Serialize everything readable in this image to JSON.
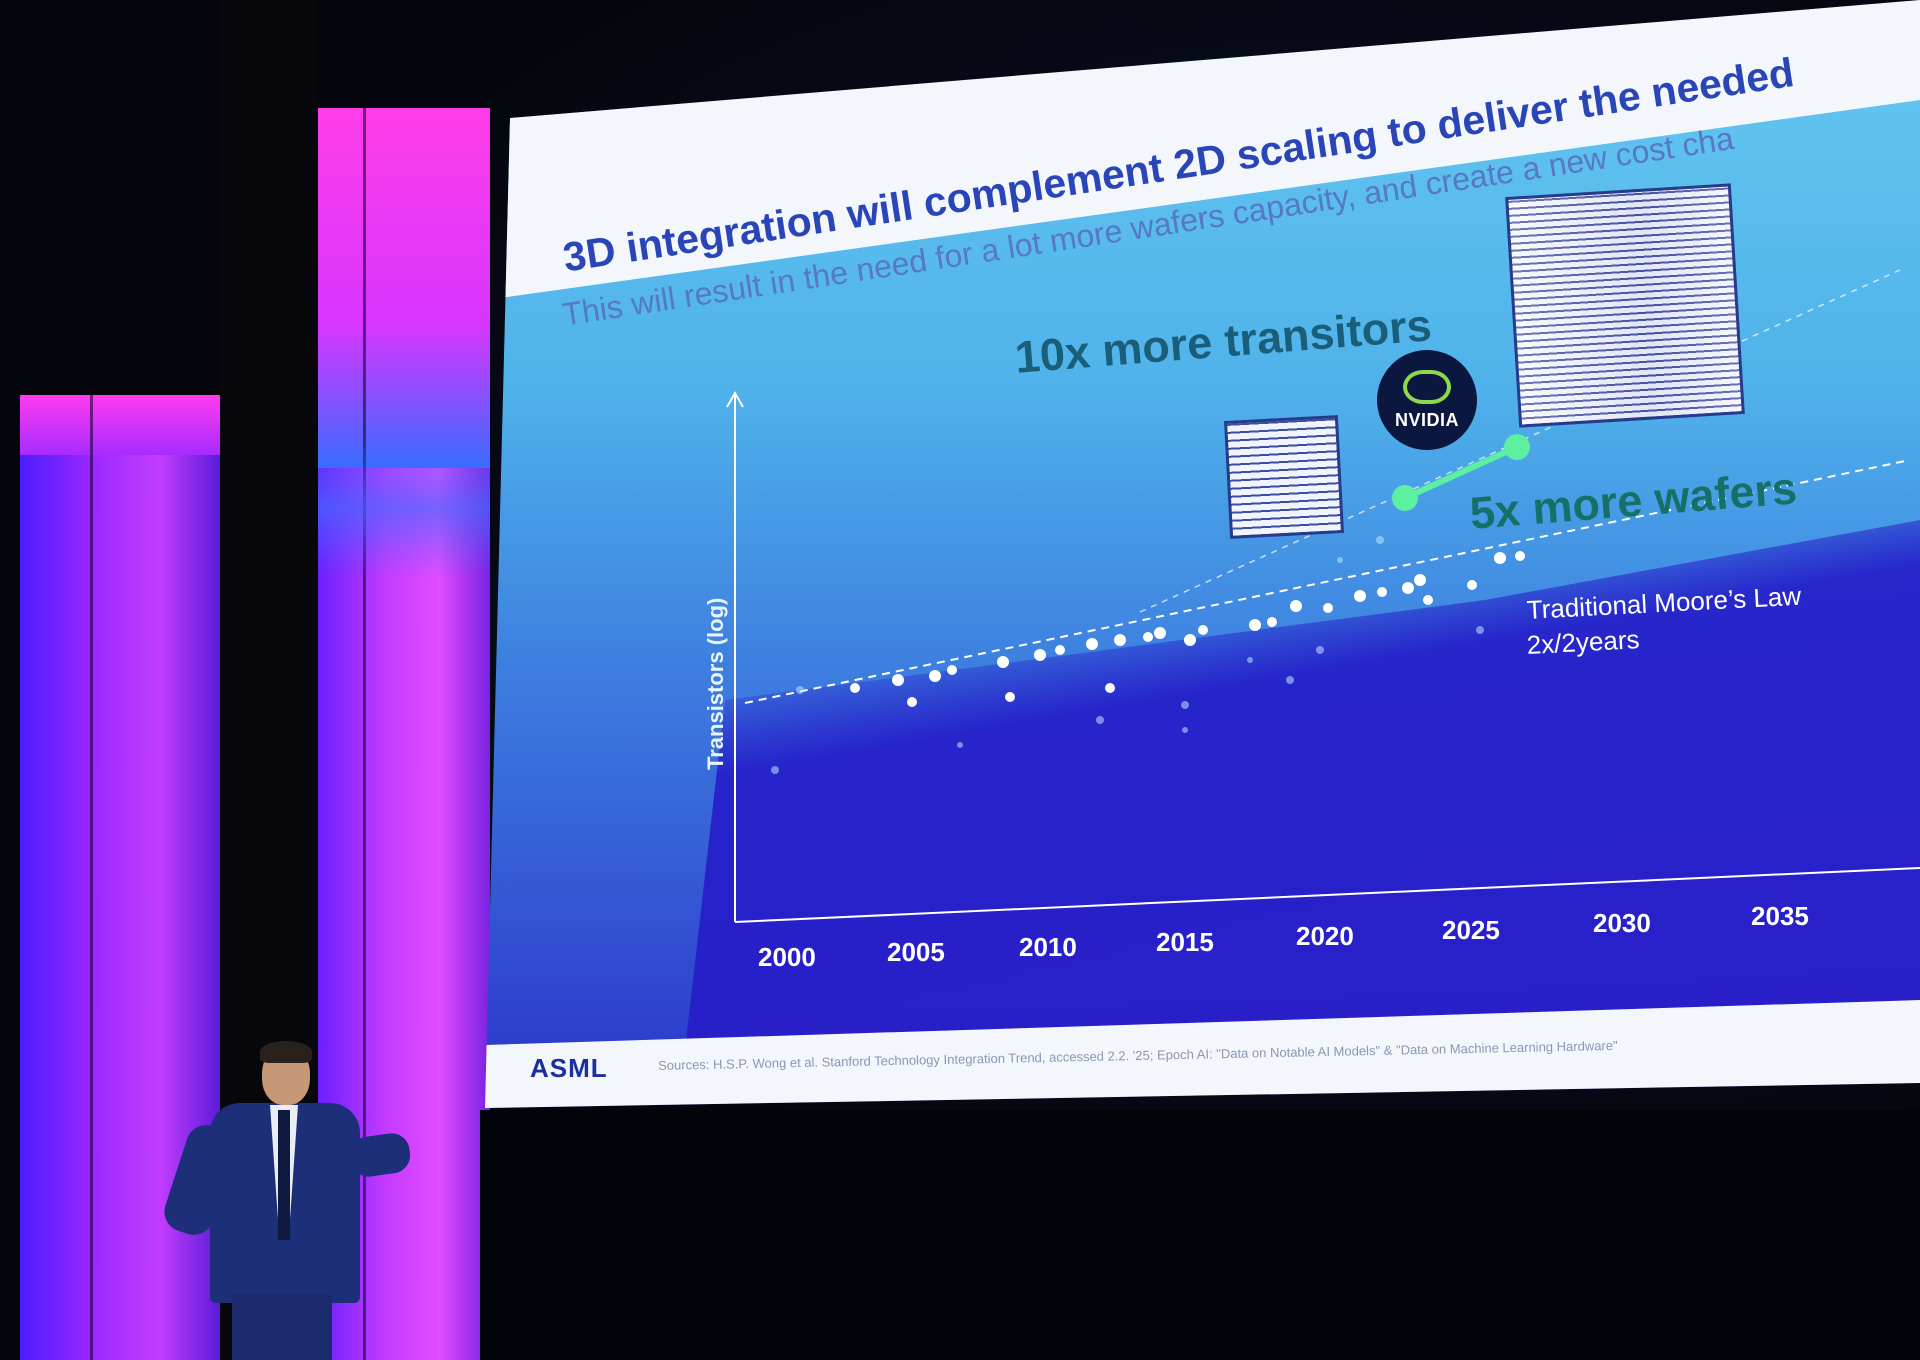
{
  "slide": {
    "title": "3D integration will complement 2D scaling to deliver the needed",
    "subtitle": "This will result in the need for a lot more wafers capacity, and create a new cost cha",
    "annotation_transistors": "10x more transitors",
    "annotation_wafers": "5x more wafers",
    "moore_label_line1": "Traditional Moore’s Law",
    "moore_label_line2": "2x/2years",
    "y_axis_label": "Transistors (log)",
    "x_ticks": [
      "2000",
      "2005",
      "2010",
      "2015",
      "2020",
      "2025",
      "2030",
      "2035"
    ],
    "brand": "ASML",
    "logo_text": "NVIDIA",
    "sources": "Sources: H.S.P. Wong et al. Stanford Technology Integration Trend, accessed 2.2. '25; Epoch AI: \"Data on Notable AI Models\" & \"Data on Machine Learning Hardware\""
  },
  "colors": {
    "title": "#2945b8",
    "screen_top": "#66c9f0",
    "screen_bottom": "#2b32c9",
    "accent_green": "#5cf0a0",
    "pillar_magenta": "#e24cff"
  },
  "icons": [
    "nvidia-logo",
    "chip-image"
  ]
}
